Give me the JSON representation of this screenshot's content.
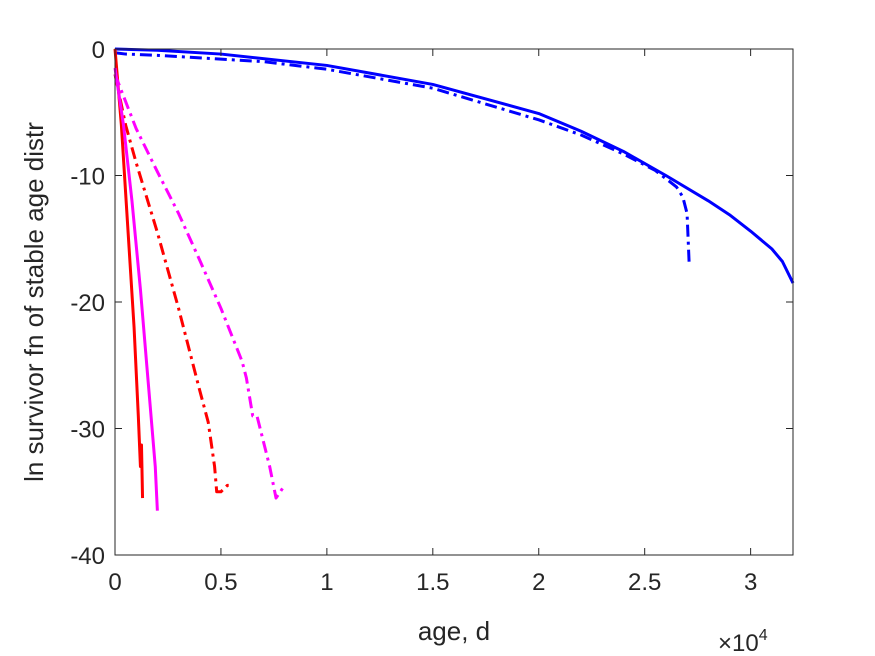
{
  "chart_data": {
    "type": "line",
    "title": "",
    "xlabel": "age, d",
    "ylabel": "ln survivor fn of stable age distr",
    "x_exponent_label": {
      "base": "×10",
      "exponent": "4"
    },
    "xlim": [
      0,
      32000
    ],
    "ylim": [
      -40,
      0
    ],
    "xticks": [
      0,
      5000,
      10000,
      15000,
      20000,
      25000,
      30000
    ],
    "xtick_labels": [
      "0",
      "0.5",
      "1",
      "1.5",
      "2",
      "2.5",
      "3"
    ],
    "yticks": [
      0,
      -10,
      -20,
      -30,
      -40
    ],
    "ytick_labels": [
      "0",
      "-10",
      "-20",
      "-30",
      "-40"
    ],
    "grid": false,
    "box": true,
    "series": [
      {
        "color": "#0000ff",
        "dash": "solid",
        "points": [
          [
            0,
            0
          ],
          [
            2000,
            -0.1
          ],
          [
            5000,
            -0.4
          ],
          [
            10000,
            -1.3
          ],
          [
            15000,
            -2.8
          ],
          [
            20000,
            -5.1
          ],
          [
            22000,
            -6.5
          ],
          [
            24000,
            -8.1
          ],
          [
            26000,
            -10.0
          ],
          [
            28000,
            -12.0
          ],
          [
            29000,
            -13.1
          ],
          [
            30000,
            -14.4
          ],
          [
            31000,
            -15.8
          ],
          [
            31500,
            -16.8
          ],
          [
            32000,
            -18.5
          ]
        ]
      },
      {
        "color": "#0000ff",
        "dash": "dashdot",
        "points": [
          [
            0,
            -0.3
          ],
          [
            500,
            -0.4
          ],
          [
            2000,
            -0.5
          ],
          [
            5000,
            -0.8
          ],
          [
            7000,
            -1.0
          ],
          [
            10000,
            -1.6
          ],
          [
            15000,
            -3.1
          ],
          [
            20000,
            -5.6
          ],
          [
            22000,
            -6.8
          ],
          [
            24000,
            -8.3
          ],
          [
            25500,
            -9.6
          ],
          [
            26500,
            -10.9
          ],
          [
            26800,
            -11.7
          ],
          [
            27000,
            -13.0
          ],
          [
            27050,
            -15.0
          ],
          [
            27100,
            -17.0
          ]
        ]
      },
      {
        "color": "#ff0000",
        "dash": "solid",
        "points": [
          [
            0,
            0
          ],
          [
            300,
            -6
          ],
          [
            600,
            -14
          ],
          [
            900,
            -22
          ],
          [
            1100,
            -29
          ],
          [
            1200,
            -33
          ],
          [
            1250,
            -31.3
          ],
          [
            1300,
            -35.5
          ]
        ]
      },
      {
        "color": "#ff0000",
        "dash": "dashdot",
        "points": [
          [
            0,
            -2
          ],
          [
            500,
            -6
          ],
          [
            1000,
            -9
          ],
          [
            2000,
            -14.5
          ],
          [
            3000,
            -20.5
          ],
          [
            4000,
            -27
          ],
          [
            4400,
            -29.5
          ],
          [
            4700,
            -33
          ],
          [
            4800,
            -35
          ],
          [
            5000,
            -35
          ],
          [
            5300,
            -34.5
          ],
          [
            5500,
            -34.5
          ]
        ]
      },
      {
        "color": "#ff00ff",
        "dash": "solid",
        "points": [
          [
            0,
            -1.5
          ],
          [
            400,
            -6
          ],
          [
            800,
            -12
          ],
          [
            1200,
            -19
          ],
          [
            1600,
            -27
          ],
          [
            1900,
            -33
          ],
          [
            2000,
            -36.5
          ]
        ]
      },
      {
        "color": "#ff00ff",
        "dash": "dashdot",
        "points": [
          [
            0,
            -2
          ],
          [
            1000,
            -6.3
          ],
          [
            2000,
            -9.7
          ],
          [
            3000,
            -13
          ],
          [
            4000,
            -16.7
          ],
          [
            5000,
            -20.5
          ],
          [
            6000,
            -24.7
          ],
          [
            6200,
            -26
          ],
          [
            6500,
            -29
          ],
          [
            6700,
            -29
          ],
          [
            7000,
            -31
          ],
          [
            7300,
            -33
          ],
          [
            7600,
            -35.5
          ],
          [
            8000,
            -34.5
          ]
        ]
      }
    ]
  }
}
